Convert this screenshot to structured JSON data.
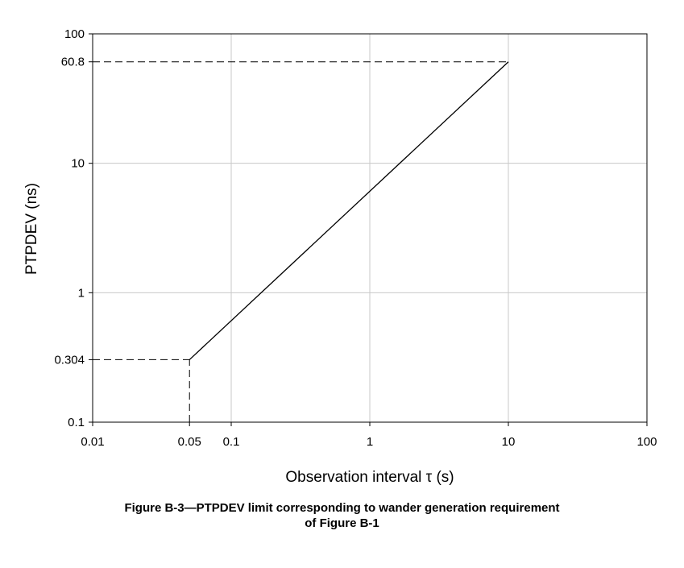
{
  "chart_data": {
    "type": "line",
    "xlabel": "Observation interval τ (s)",
    "ylabel": "PTPDEV (ns)",
    "x_scale": "log",
    "y_scale": "log",
    "xlim": [
      0.01,
      100
    ],
    "ylim": [
      0.1,
      100
    ],
    "x_ticks": [
      {
        "value": 0.01,
        "label": "0.01"
      },
      {
        "value": 0.05,
        "label": "0.05"
      },
      {
        "value": 0.1,
        "label": "0.1"
      },
      {
        "value": 1,
        "label": "1"
      },
      {
        "value": 10,
        "label": "10"
      },
      {
        "value": 100,
        "label": "100"
      }
    ],
    "y_ticks": [
      {
        "value": 0.1,
        "label": "0.1"
      },
      {
        "value": 0.304,
        "label": "0.304"
      },
      {
        "value": 1,
        "label": "1"
      },
      {
        "value": 10,
        "label": "10"
      },
      {
        "value": 60.8,
        "label": "60.8"
      },
      {
        "value": 100,
        "label": "100"
      }
    ],
    "grid": true,
    "series": [
      {
        "points": [
          [
            0.05,
            0.304
          ],
          [
            10,
            60.8
          ]
        ],
        "style": "solid",
        "color": "#000000"
      }
    ],
    "reference_lines": [
      {
        "points": [
          [
            0.01,
            60.8
          ],
          [
            10,
            60.8
          ]
        ],
        "style": "dashed"
      },
      {
        "points": [
          [
            0.01,
            0.304
          ],
          [
            0.05,
            0.304
          ]
        ],
        "style": "dashed"
      },
      {
        "points": [
          [
            0.05,
            0.1
          ],
          [
            0.05,
            0.304
          ]
        ],
        "style": "dashed"
      }
    ]
  },
  "caption": {
    "line1": "Figure B-3—PTPDEV limit corresponding to wander generation requirement",
    "line2": "of Figure B-1"
  }
}
